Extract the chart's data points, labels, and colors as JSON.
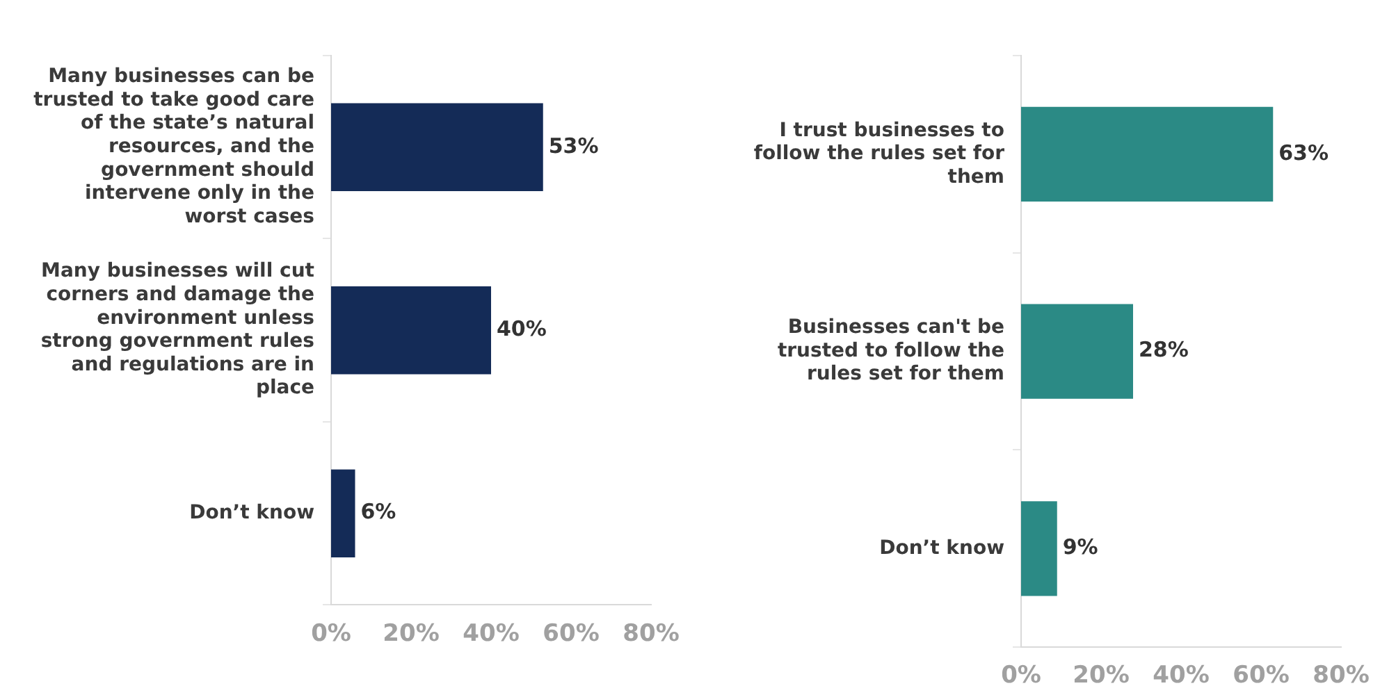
{
  "chart_data": [
    {
      "type": "bar",
      "orientation": "horizontal",
      "categories": [
        "Many businesses can be trusted to take good care of the state’s natural resources, and the government should intervene only in the worst cases",
        "Many businesses will cut corners and damage the environment unless strong government rules and regulations are in place",
        "Don’t know"
      ],
      "values": [
        53,
        40,
        6
      ],
      "value_labels": [
        "53%",
        "40%",
        "6%"
      ],
      "color": "#142b57",
      "xlim": [
        0,
        80
      ],
      "xticks": [
        {
          "value": 0,
          "label": "0%"
        },
        {
          "value": 20,
          "label": "20%"
        },
        {
          "value": 40,
          "label": "40%"
        },
        {
          "value": 60,
          "label": "60%"
        },
        {
          "value": 80,
          "label": "80%"
        }
      ],
      "grid": false,
      "legend": false
    },
    {
      "type": "bar",
      "orientation": "horizontal",
      "categories": [
        "I trust businesses to follow the rules set for them",
        "Businesses can't be trusted to follow the rules set for them",
        "Don’t know"
      ],
      "values": [
        63,
        28,
        9
      ],
      "value_labels": [
        "63%",
        "28%",
        "9%"
      ],
      "color": "#2b8a85",
      "xlim": [
        0,
        80
      ],
      "xticks": [
        {
          "value": 0,
          "label": "0%"
        },
        {
          "value": 20,
          "label": "20%"
        },
        {
          "value": 40,
          "label": "40%"
        },
        {
          "value": 60,
          "label": "60%"
        },
        {
          "value": 80,
          "label": "80%"
        }
      ],
      "grid": false,
      "legend": false
    }
  ]
}
